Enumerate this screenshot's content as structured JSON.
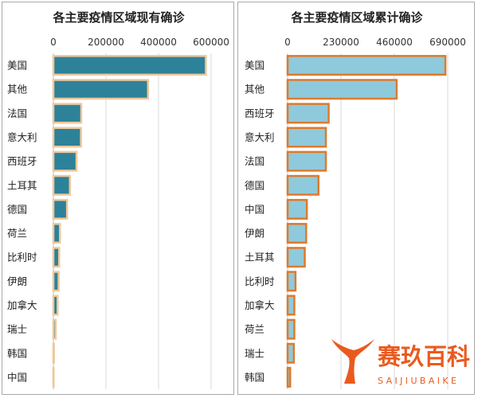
{
  "chart_data": [
    {
      "type": "bar",
      "orientation": "horizontal",
      "title": "各主要疫情区域现有确诊",
      "xlabel": "",
      "ylabel": "",
      "xlim": [
        0,
        600000
      ],
      "ticks": [
        0,
        200000,
        400000,
        600000
      ],
      "tick_labels": [
        "0",
        "200000",
        "400000",
        "600000"
      ],
      "axis_position": "top",
      "grid": true,
      "categories": [
        "美国",
        "其他",
        "法国",
        "意大利",
        "西班牙",
        "土耳其",
        "德国",
        "荷兰",
        "比利时",
        "伊朗",
        "加拿大",
        "瑞士",
        "韩国",
        "中国"
      ],
      "values": [
        580000,
        360000,
        106000,
        105000,
        88000,
        63000,
        52000,
        25000,
        22000,
        20000,
        16000,
        9000,
        2000,
        1000
      ],
      "bar_fill": "#2d8299",
      "bar_border": "#f0c89a"
    },
    {
      "type": "bar",
      "orientation": "horizontal",
      "title": "各主要疫情区域累计确诊",
      "xlabel": "",
      "ylabel": "",
      "xlim": [
        0,
        690000
      ],
      "ticks": [
        0,
        230000,
        460000,
        690000
      ],
      "tick_labels": [
        "0",
        "230000",
        "460000",
        "690000"
      ],
      "axis_position": "top",
      "grid": true,
      "categories": [
        "美国",
        "其他",
        "西班牙",
        "意大利",
        "法国",
        "德国",
        "中国",
        "伊朗",
        "土耳其",
        "比利时",
        "加拿大",
        "荷兰",
        "瑞士",
        "韩国"
      ],
      "values": [
        680000,
        470000,
        177000,
        165000,
        165000,
        133000,
        83000,
        80000,
        74000,
        34000,
        29000,
        29000,
        27000,
        11000
      ],
      "bar_fill": "#8ecadc",
      "bar_border": "#e07a2a"
    }
  ],
  "watermark": {
    "brand_cn": "赛玖百科",
    "brand_en": "SAIJIUBAIKE",
    "color": "#ea5a1e"
  }
}
